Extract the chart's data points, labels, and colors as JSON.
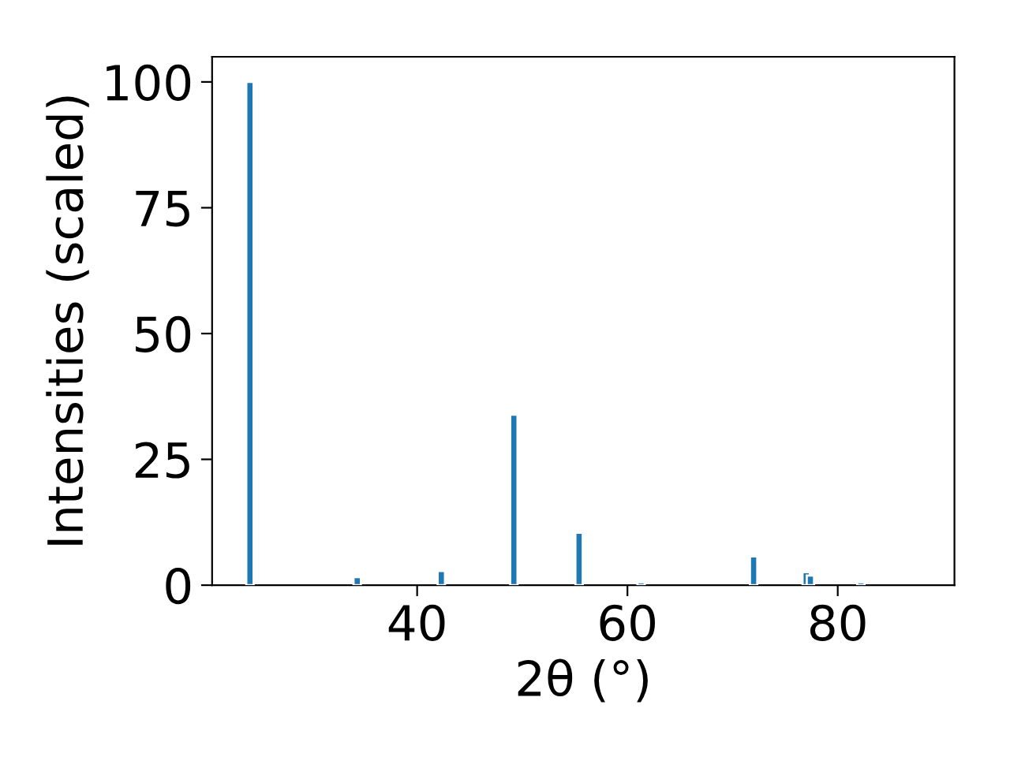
{
  "chart_data": {
    "type": "bar",
    "xlabel": "2θ (°)",
    "ylabel": "Intensities (scaled)",
    "x": [
      24.1,
      34.3,
      42.3,
      49.2,
      55.4,
      61.3,
      72.0,
      77.0,
      77.4,
      82.2
    ],
    "values": [
      100,
      1.6,
      2.8,
      33.9,
      10.4,
      0.6,
      5.7,
      2.6,
      1.9,
      0.6
    ],
    "color": "#1f77b4",
    "xlim": [
      20.5,
      91.1
    ],
    "xticks": [
      40,
      60,
      80
    ],
    "ylim": [
      0,
      105
    ],
    "yticks": [
      0,
      25,
      50,
      75,
      100
    ],
    "grid": false
  }
}
